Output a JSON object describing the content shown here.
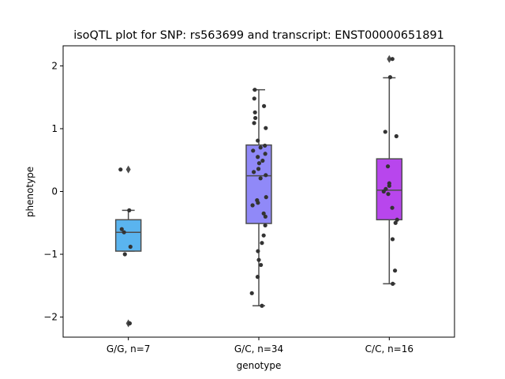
{
  "chart_data": {
    "type": "box",
    "title": "isoQTL plot for SNP: rs563699 and transcript: ENST00000651891",
    "xlabel": "genotype",
    "ylabel": "phenotype",
    "ylim": [
      -2.32,
      2.32
    ],
    "yticks": [
      {
        "value": 2,
        "label": "2"
      },
      {
        "value": 1,
        "label": "1"
      },
      {
        "value": 0,
        "label": "0"
      },
      {
        "value": -1,
        "label": "−1"
      },
      {
        "value": -2,
        "label": "−2"
      }
    ],
    "grid": false,
    "legend": false,
    "categories": [
      "G/G, n=7",
      "G/C, n=34",
      "C/C, n=16"
    ],
    "boxes": [
      {
        "category": "G/G, n=7",
        "color": "#5ab4ef",
        "q1": -0.95,
        "median": -0.65,
        "q3": -0.45,
        "whisker_low": -0.95,
        "whisker_high": -0.3,
        "outliers": [
          0.35,
          -2.1
        ],
        "points": [
          {
            "j": -0.45,
            "y": 0.35
          },
          {
            "j": 0.05,
            "y": -0.3
          },
          {
            "j": -0.38,
            "y": -0.6
          },
          {
            "j": -0.25,
            "y": -0.65
          },
          {
            "j": 0.12,
            "y": -0.88
          },
          {
            "j": -0.2,
            "y": -1.0
          },
          {
            "j": 0.08,
            "y": -2.1
          }
        ]
      },
      {
        "category": "G/C, n=34",
        "color": "#9089f8",
        "q1": -0.51,
        "median": 0.25,
        "q3": 0.74,
        "whisker_low": -1.82,
        "whisker_high": 1.62,
        "outliers": [],
        "points": [
          {
            "j": -0.23,
            "y": 1.62
          },
          {
            "j": -0.26,
            "y": 1.48
          },
          {
            "j": 0.3,
            "y": 1.36
          },
          {
            "j": -0.22,
            "y": 1.26
          },
          {
            "j": -0.2,
            "y": 1.17
          },
          {
            "j": -0.27,
            "y": 1.09
          },
          {
            "j": 0.4,
            "y": 1.01
          },
          {
            "j": -0.06,
            "y": 0.81
          },
          {
            "j": 0.1,
            "y": 0.7
          },
          {
            "j": 0.35,
            "y": 0.73
          },
          {
            "j": -0.33,
            "y": 0.65
          },
          {
            "j": 0.37,
            "y": 0.6
          },
          {
            "j": -0.06,
            "y": 0.55
          },
          {
            "j": 0.22,
            "y": 0.49
          },
          {
            "j": 0.02,
            "y": 0.45
          },
          {
            "j": -0.29,
            "y": 0.31
          },
          {
            "j": 0.4,
            "y": 0.26
          },
          {
            "j": 0.1,
            "y": 0.21
          },
          {
            "j": 0.42,
            "y": -0.09
          },
          {
            "j": -0.1,
            "y": -0.14
          },
          {
            "j": -0.05,
            "y": -0.18
          },
          {
            "j": -0.36,
            "y": -0.22
          },
          {
            "j": 0.28,
            "y": -0.35
          },
          {
            "j": 0.38,
            "y": -0.4
          },
          {
            "j": 0.37,
            "y": -0.54
          },
          {
            "j": 0.28,
            "y": -0.7
          },
          {
            "j": 0.18,
            "y": -0.82
          },
          {
            "j": -0.05,
            "y": -0.95
          },
          {
            "j": 0.0,
            "y": -1.09
          },
          {
            "j": 0.12,
            "y": -1.17
          },
          {
            "j": -0.07,
            "y": -1.36
          },
          {
            "j": -0.4,
            "y": -1.62
          },
          {
            "j": 0.18,
            "y": -1.82
          },
          {
            "j": -0.02,
            "y": 0.36
          }
        ]
      },
      {
        "category": "C/C, n=16",
        "color": "#b846ed",
        "q1": -0.45,
        "median": 0.02,
        "q3": 0.52,
        "whisker_low": -1.47,
        "whisker_high": 1.81,
        "outliers": [
          2.11
        ],
        "points": [
          {
            "j": 0.18,
            "y": 2.11
          },
          {
            "j": 0.05,
            "y": 1.82
          },
          {
            "j": -0.23,
            "y": 0.95
          },
          {
            "j": 0.41,
            "y": 0.88
          },
          {
            "j": -0.08,
            "y": 0.4
          },
          {
            "j": 0.0,
            "y": 0.13
          },
          {
            "j": 0.0,
            "y": 0.09
          },
          {
            "j": -0.2,
            "y": 0.04
          },
          {
            "j": -0.32,
            "y": 0.0
          },
          {
            "j": -0.06,
            "y": -0.04
          },
          {
            "j": 0.17,
            "y": -0.26
          },
          {
            "j": 0.45,
            "y": -0.45
          },
          {
            "j": 0.36,
            "y": -0.5
          },
          {
            "j": 0.19,
            "y": -0.76
          },
          {
            "j": 0.33,
            "y": -1.26
          },
          {
            "j": 0.2,
            "y": -1.47
          }
        ]
      }
    ]
  }
}
